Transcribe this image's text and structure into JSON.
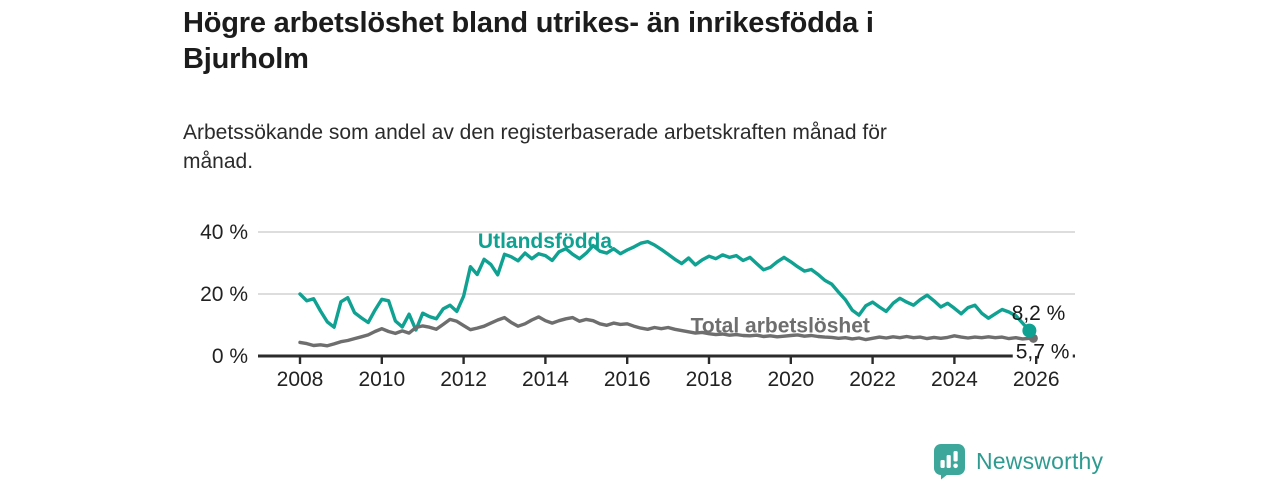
{
  "header": {
    "title": "Högre arbetslöshet bland utrikes- än inrikesfödda i Bjurholm",
    "title_lines": [
      "Högre arbetslöshet bland utrikes- än inrikesfödda i",
      "Bjurholm"
    ],
    "subtitle_lines": [
      "Arbetssökande som andel av den registerbaserade arbetskraften månad för",
      "månad."
    ]
  },
  "footer": {
    "brand": "Newsworthy",
    "logo_icon": "bar-chart-pin-icon",
    "brand_color": "#2e9b91",
    "icon_color": "#3da79c"
  },
  "colors": {
    "foreign_born": "#0fa191",
    "total": "#6e6e6e",
    "grid": "#d2d2d2",
    "axis": "#2b2b2b",
    "tick_text": "#222222",
    "value_text": "#1a1a1a",
    "background": "#ffffff"
  },
  "chart_data": {
    "type": "line",
    "title": "Högre arbetslöshet bland utrikes- än inrikesfödda i Bjurholm",
    "subtitle": "Arbetssökande som andel av den registerbaserade arbetskraften månad för månad.",
    "xlabel": "",
    "ylabel": "",
    "grid": "horizontal",
    "xlim": [
      2006.1,
      2026.9
    ],
    "ylim": [
      0,
      42
    ],
    "x_ticks": [
      2008,
      2010,
      2012,
      2014,
      2016,
      2018,
      2020,
      2022,
      2024,
      2026
    ],
    "x_tick_labels": [
      "2008",
      "2010",
      "2012",
      "2014",
      "2016",
      "2018",
      "2020",
      "2022",
      "2024",
      "2026"
    ],
    "y_ticks": [
      0,
      20,
      40
    ],
    "y_tick_labels": [
      "0 %",
      "20 %",
      "40 %"
    ],
    "x_start": 2008,
    "x_step": 0.1666667,
    "series": [
      {
        "name": "Utlandsfödda",
        "color": "#0fa191",
        "end_label": "8,2 %",
        "end_value": 8.2,
        "values": [
          20.0,
          17.8,
          18.5,
          14.5,
          11.0,
          9.3,
          17.5,
          18.8,
          14.0,
          12.3,
          10.8,
          14.8,
          18.3,
          17.8,
          11.3,
          9.4,
          13.5,
          8.4,
          13.8,
          12.7,
          12.0,
          15.2,
          16.4,
          14.4,
          19.3,
          28.8,
          26.3,
          31.2,
          29.5,
          26.2,
          32.8,
          32.0,
          30.7,
          33.2,
          31.4,
          33.0,
          32.4,
          30.8,
          33.6,
          34.6,
          32.8,
          31.4,
          33.2,
          35.6,
          33.8,
          33.2,
          34.6,
          33.0,
          34.2,
          35.2,
          36.4,
          36.9,
          35.8,
          34.4,
          32.8,
          31.2,
          29.8,
          31.6,
          29.4,
          31.0,
          32.2,
          31.4,
          32.6,
          31.8,
          32.4,
          30.8,
          31.8,
          29.8,
          27.8,
          28.6,
          30.4,
          31.8,
          30.4,
          28.8,
          27.4,
          27.9,
          26.3,
          24.4,
          23.2,
          20.6,
          18.2,
          14.8,
          13.2,
          16.2,
          17.4,
          15.8,
          14.4,
          17.0,
          18.6,
          17.4,
          16.4,
          18.2,
          19.6,
          17.8,
          15.8,
          17.0,
          15.4,
          13.6,
          15.6,
          16.4,
          13.8,
          12.2,
          13.6,
          15.0,
          14.2,
          13.0,
          10.6,
          8.2
        ]
      },
      {
        "name": "Total arbetslöshet",
        "color": "#6e6e6e",
        "end_label": "5,7 %",
        "end_value": 5.7,
        "values": [
          4.4,
          4.0,
          3.4,
          3.6,
          3.3,
          3.9,
          4.6,
          5.0,
          5.6,
          6.2,
          6.8,
          7.9,
          8.8,
          7.9,
          7.3,
          8.1,
          7.4,
          9.2,
          9.7,
          9.3,
          8.6,
          10.2,
          11.8,
          11.2,
          9.8,
          8.5,
          9.0,
          9.6,
          10.6,
          11.6,
          12.4,
          10.8,
          9.6,
          10.4,
          11.6,
          12.6,
          11.4,
          10.6,
          11.4,
          12.0,
          12.4,
          11.2,
          11.8,
          11.4,
          10.4,
          9.9,
          10.6,
          10.2,
          10.4,
          9.6,
          9.0,
          8.6,
          9.2,
          8.8,
          9.2,
          8.6,
          8.2,
          7.8,
          7.4,
          7.6,
          7.2,
          6.9,
          7.1,
          6.7,
          6.9,
          6.6,
          6.5,
          6.7,
          6.3,
          6.5,
          6.2,
          6.4,
          6.6,
          6.8,
          6.4,
          6.6,
          6.3,
          6.1,
          6.0,
          5.7,
          5.9,
          5.5,
          5.8,
          5.3,
          5.7,
          6.1,
          5.8,
          6.2,
          5.9,
          6.3,
          5.9,
          6.1,
          5.6,
          6.0,
          5.7,
          6.0,
          6.5,
          6.1,
          5.8,
          6.1,
          5.9,
          6.2,
          5.9,
          6.1,
          5.6,
          5.9,
          5.5,
          5.7
        ]
      }
    ],
    "annotations": [
      {
        "text": "Utlandsfödda",
        "x": 2012.35,
        "y": 34.9,
        "color": "#0fa191",
        "bold": true,
        "bg": false
      },
      {
        "text": "Total arbetslöshet",
        "x": 2017.55,
        "y": 7.6,
        "color": "#6e6e6e",
        "bold": true,
        "bg": false
      },
      {
        "text": "8,2 %",
        "x": 2025.4,
        "y": 11.6,
        "color": "#1a1a1a",
        "bold": false,
        "bg": false
      },
      {
        "text": "5,7 %",
        "x": 2025.5,
        "y": -0.8,
        "color": "#1a1a1a",
        "bold": false,
        "bg": true
      }
    ],
    "legend_position": "inline-labels"
  }
}
